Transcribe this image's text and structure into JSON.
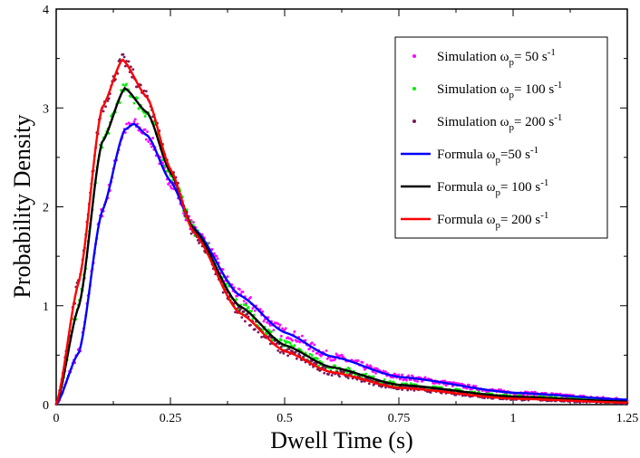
{
  "chart_data": {
    "type": "line",
    "xlabel": "Dwell Time (s)",
    "ylabel": "Probability Density",
    "xlim": [
      0,
      1.25
    ],
    "ylim": [
      0,
      4
    ],
    "x_ticks": [
      "0",
      "0.25",
      "0.5",
      "0.75",
      "1",
      "1.25"
    ],
    "y_ticks": [
      "0",
      "1",
      "2",
      "3",
      "4"
    ],
    "grid": false,
    "legend_position": "top-right",
    "series": [
      {
        "kind": "scatter",
        "label_main": "Simulation ω",
        "label_sub": "p",
        "label_tail": "= 50 s",
        "label_sup": "-1",
        "color": "#ff00ff",
        "omega": 50,
        "x": [
          0.0,
          0.05,
          0.1,
          0.15,
          0.17,
          0.2,
          0.25,
          0.3,
          0.4,
          0.5,
          0.6,
          0.75,
          1.0,
          1.25
        ],
        "y": [
          0.0,
          0.53,
          1.95,
          2.78,
          2.84,
          2.72,
          2.26,
          1.79,
          1.11,
          0.73,
          0.49,
          0.28,
          0.12,
          0.05
        ]
      },
      {
        "kind": "scatter",
        "label_main": "Simulation ω",
        "label_sub": "p",
        "label_tail": "= 100 s",
        "label_sup": "-1",
        "color": "#00ee00",
        "omega": 100,
        "x": [
          0.0,
          0.05,
          0.1,
          0.15,
          0.2,
          0.25,
          0.3,
          0.4,
          0.5,
          0.6,
          0.75,
          1.0,
          1.25
        ],
        "y": [
          0.0,
          1.0,
          2.65,
          3.2,
          2.95,
          2.35,
          1.78,
          1.0,
          0.6,
          0.38,
          0.2,
          0.08,
          0.03
        ]
      },
      {
        "kind": "scatter",
        "label_main": "Simulation ω",
        "label_sub": "p",
        "label_tail": "= 200 s",
        "label_sup": "-1",
        "color": "#7b1a5c",
        "omega": 200,
        "x": [
          0.0,
          0.05,
          0.1,
          0.145,
          0.2,
          0.25,
          0.3,
          0.4,
          0.5,
          0.6,
          0.75,
          1.0,
          1.25
        ],
        "y": [
          0.0,
          1.25,
          3.0,
          3.49,
          3.1,
          2.38,
          1.75,
          0.93,
          0.54,
          0.33,
          0.17,
          0.06,
          0.02
        ]
      },
      {
        "kind": "line",
        "label_main": "Formula ω",
        "label_sub": "p",
        "label_tail": "=50 s",
        "label_sup": "-1",
        "color": "#0000ff",
        "omega": 50,
        "x": [
          0.0,
          0.05,
          0.1,
          0.15,
          0.17,
          0.2,
          0.25,
          0.3,
          0.4,
          0.5,
          0.6,
          0.75,
          1.0,
          1.25
        ],
        "y": [
          0.0,
          0.53,
          1.95,
          2.78,
          2.84,
          2.72,
          2.26,
          1.79,
          1.11,
          0.73,
          0.49,
          0.28,
          0.12,
          0.05
        ]
      },
      {
        "kind": "line",
        "label_main": "Formula ω",
        "label_sub": "p",
        "label_tail": "= 100 s",
        "label_sup": "-1",
        "color": "#000000",
        "omega": 100,
        "x": [
          0.0,
          0.05,
          0.1,
          0.15,
          0.2,
          0.25,
          0.3,
          0.4,
          0.5,
          0.6,
          0.75,
          1.0,
          1.25
        ],
        "y": [
          0.0,
          1.0,
          2.65,
          3.2,
          2.95,
          2.35,
          1.78,
          1.0,
          0.6,
          0.38,
          0.2,
          0.08,
          0.03
        ]
      },
      {
        "kind": "line",
        "label_main": "Formula ω",
        "label_sub": "p",
        "label_tail": "= 200 s",
        "label_sup": "-1",
        "color": "#ff0000",
        "omega": 200,
        "x": [
          0.0,
          0.05,
          0.1,
          0.145,
          0.2,
          0.25,
          0.3,
          0.4,
          0.5,
          0.6,
          0.75,
          1.0,
          1.25
        ],
        "y": [
          0.0,
          1.25,
          3.0,
          3.49,
          3.1,
          2.38,
          1.75,
          0.93,
          0.54,
          0.33,
          0.17,
          0.06,
          0.02
        ]
      }
    ]
  }
}
